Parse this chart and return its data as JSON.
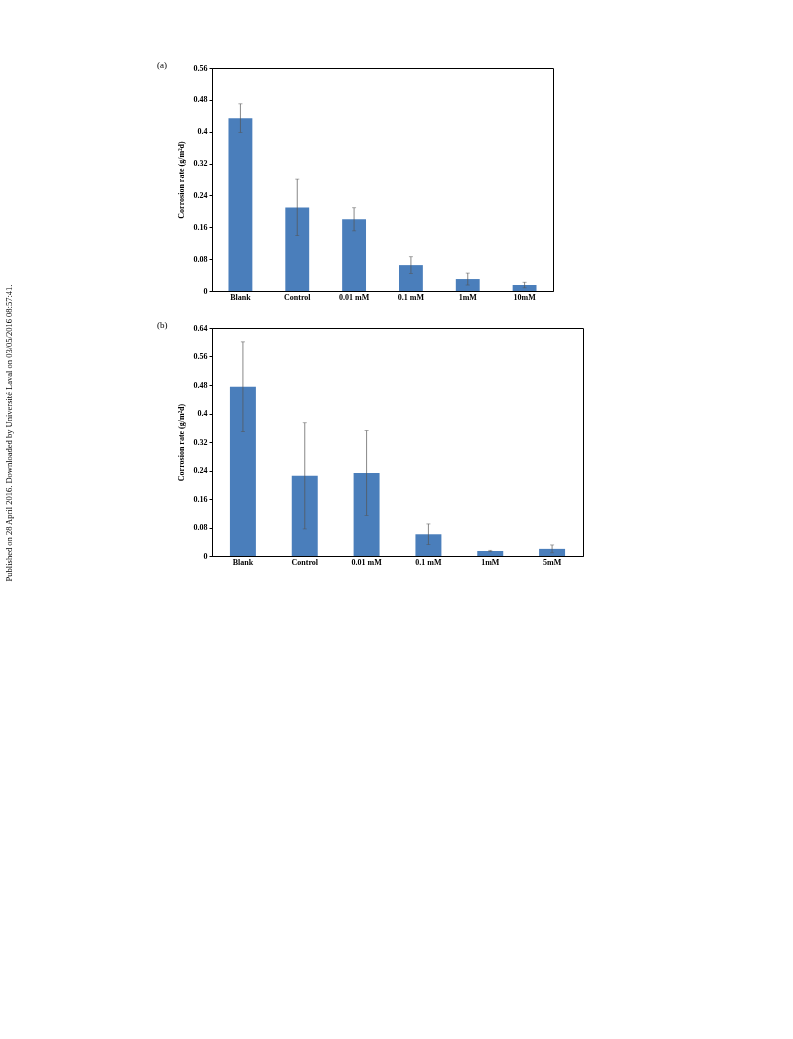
{
  "chart_data": [
    {
      "type": "bar",
      "title": "(a)",
      "ylabel": "Corrosion rate (g/m²d)",
      "categories": [
        "Blank",
        "Control",
        "0.01 mM",
        "0.1 mM",
        "1mM",
        "10mM"
      ],
      "values": [
        0.434,
        0.21,
        0.18,
        0.065,
        0.03,
        0.015
      ],
      "errors": [
        0.036,
        0.071,
        0.029,
        0.021,
        0.015,
        0.007
      ],
      "color": "#4a7ebb",
      "ylim": [
        0,
        0.56
      ],
      "yticks": [
        0,
        0.08,
        0.16,
        0.24,
        0.32,
        0.4,
        0.48,
        0.56
      ],
      "grid": false,
      "annotations": [
        "Published on 28 April 2016. Downloaded by Université Laval on 03/05/2016 08:57:41."
      ]
    },
    {
      "type": "bar",
      "title": "(b)",
      "ylabel": "Corrosion rate (g/m²d)",
      "categories": [
        "Blank",
        "Control",
        "0.01 mM",
        "0.1 mM",
        "1mM",
        "5mM"
      ],
      "values": [
        0.475,
        0.225,
        0.233,
        0.061,
        0.014,
        0.02
      ],
      "errors": [
        0.126,
        0.149,
        0.119,
        0.029,
        0.002,
        0.011
      ],
      "color": "#4a7ebb",
      "ylim": [
        0,
        0.64
      ],
      "yticks": [
        0,
        0.08,
        0.16,
        0.24,
        0.32,
        0.4,
        0.48,
        0.56,
        0.64
      ],
      "grid": false
    }
  ]
}
